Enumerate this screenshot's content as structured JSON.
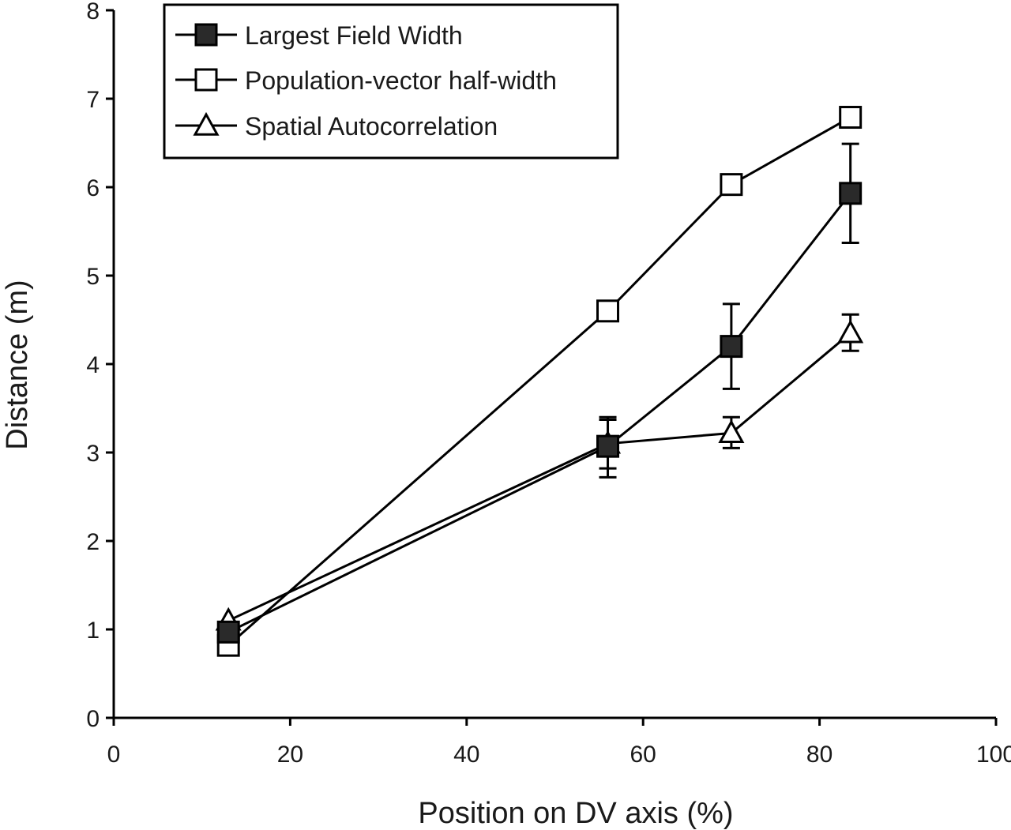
{
  "chart_data": {
    "type": "line",
    "xlabel": "Position on DV axis (%)",
    "ylabel": "Distance (m)",
    "xlim": [
      0,
      100
    ],
    "ylim": [
      0,
      8
    ],
    "xticks": [
      0,
      20,
      40,
      60,
      80,
      100
    ],
    "yticks": [
      0,
      1,
      2,
      3,
      4,
      5,
      6,
      7,
      8
    ],
    "grid": false,
    "legend_position": "top-left",
    "series": [
      {
        "name": "Largest Field Width",
        "marker": "filled-square",
        "x": [
          13,
          56,
          70,
          83.5
        ],
        "y": [
          0.97,
          3.07,
          4.2,
          5.93
        ],
        "err_lower": [
          null,
          2.72,
          3.72,
          5.37
        ],
        "err_upper": [
          null,
          3.37,
          4.68,
          6.49
        ]
      },
      {
        "name": "Population-vector half-width",
        "marker": "open-square",
        "x": [
          13,
          56,
          70,
          83.5
        ],
        "y": [
          0.82,
          4.6,
          6.03,
          6.79
        ],
        "err_lower": [
          null,
          null,
          null,
          null
        ],
        "err_upper": [
          null,
          null,
          null,
          null
        ]
      },
      {
        "name": "Spatial Autocorrelation",
        "marker": "open-triangle",
        "x": [
          13,
          56,
          70,
          83.5
        ],
        "y": [
          1.1,
          3.1,
          3.22,
          4.35
        ],
        "err_lower": [
          null,
          2.82,
          3.05,
          4.15
        ],
        "err_upper": [
          null,
          3.4,
          3.4,
          4.56
        ]
      }
    ]
  }
}
